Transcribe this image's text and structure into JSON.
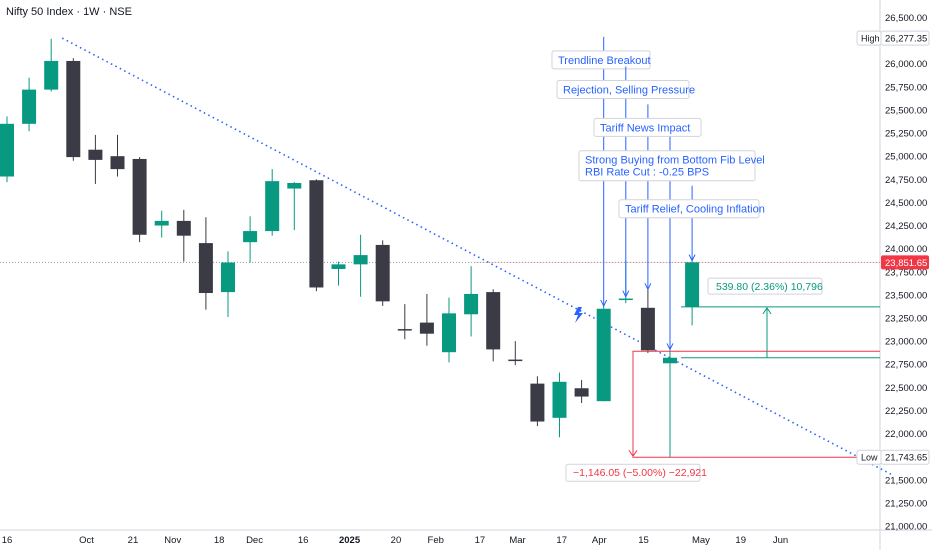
{
  "header": {
    "symbol": "Nifty 50 Index",
    "interval": "1W",
    "exchange": "NSE"
  },
  "chart_data": {
    "type": "candlestick",
    "title": "Nifty 50 Index · 1W · NSE",
    "y_axis": {
      "range": [
        21000,
        26700
      ],
      "ticks": [
        "26,500.00",
        "26,250.00",
        "26,000.00",
        "25,750.00",
        "25,500.00",
        "25,250.00",
        "25,000.00",
        "24,750.00",
        "24,500.00",
        "24,250.00",
        "24,000.00",
        "23,750.00",
        "23,500.00",
        "23,250.00",
        "23,000.00",
        "22,750.00",
        "22,500.00",
        "22,250.00",
        "22,000.00",
        "21,750.00",
        "21,500.00",
        "21,250.00",
        "21,000.00"
      ],
      "tick_values": [
        26500,
        26250,
        26000,
        25750,
        25500,
        25250,
        25000,
        24750,
        24500,
        24250,
        24000,
        23750,
        23500,
        23250,
        23000,
        22750,
        22500,
        22250,
        22000,
        21750,
        21500,
        21250,
        21000
      ]
    },
    "x_axis": {
      "labels": [
        {
          "label": "16",
          "week": 0
        },
        {
          "label": "Oct",
          "week": 3.6
        },
        {
          "label": "21",
          "week": 5.7
        },
        {
          "label": "Nov",
          "week": 7.5
        },
        {
          "label": "18",
          "week": 9.6
        },
        {
          "label": "Dec",
          "week": 11.2
        },
        {
          "label": "16",
          "week": 13.4
        },
        {
          "label": "2025",
          "week": 15.5
        },
        {
          "label": "20",
          "week": 17.6
        },
        {
          "label": "Feb",
          "week": 19.4
        },
        {
          "label": "17",
          "week": 21.4
        },
        {
          "label": "Mar",
          "week": 23.1
        },
        {
          "label": "17",
          "week": 25.1
        },
        {
          "label": "Apr",
          "week": 26.8
        },
        {
          "label": "15",
          "week": 28.8
        },
        {
          "label": "May",
          "week": 31.4
        },
        {
          "label": "19",
          "week": 33.2
        },
        {
          "label": "Jun",
          "week": 35.0
        }
      ]
    },
    "candles": [
      {
        "o": 24780,
        "h": 25430,
        "l": 24720,
        "c": 25350
      },
      {
        "o": 25350,
        "h": 25850,
        "l": 25270,
        "c": 25720
      },
      {
        "o": 25720,
        "h": 26270,
        "l": 25700,
        "c": 26030
      },
      {
        "o": 26030,
        "h": 26060,
        "l": 24950,
        "c": 24990
      },
      {
        "o": 25070,
        "h": 25230,
        "l": 24700,
        "c": 24960
      },
      {
        "o": 25000,
        "h": 25230,
        "l": 24780,
        "c": 24860
      },
      {
        "o": 24970,
        "h": 24990,
        "l": 24070,
        "c": 24150
      },
      {
        "o": 24250,
        "h": 24410,
        "l": 24120,
        "c": 24300
      },
      {
        "o": 24300,
        "h": 24420,
        "l": 23860,
        "c": 24140
      },
      {
        "o": 24060,
        "h": 24340,
        "l": 23340,
        "c": 23520
      },
      {
        "o": 23530,
        "h": 23970,
        "l": 23260,
        "c": 23850
      },
      {
        "o": 24070,
        "h": 24350,
        "l": 23850,
        "c": 24190
      },
      {
        "o": 24190,
        "h": 24860,
        "l": 24140,
        "c": 24730
      },
      {
        "o": 24650,
        "h": 24720,
        "l": 24200,
        "c": 24710
      },
      {
        "o": 24740,
        "h": 24750,
        "l": 23540,
        "c": 23580
      },
      {
        "o": 23780,
        "h": 23860,
        "l": 23600,
        "c": 23830
      },
      {
        "o": 23830,
        "h": 24150,
        "l": 23480,
        "c": 23930
      },
      {
        "o": 24040,
        "h": 24090,
        "l": 23380,
        "c": 23430
      },
      {
        "o": 23130,
        "h": 23400,
        "l": 23020,
        "c": 23120
      },
      {
        "o": 23200,
        "h": 23510,
        "l": 22950,
        "c": 23080
      },
      {
        "o": 22880,
        "h": 23470,
        "l": 22770,
        "c": 23300
      },
      {
        "o": 23290,
        "h": 23810,
        "l": 23050,
        "c": 23510
      },
      {
        "o": 23530,
        "h": 23560,
        "l": 22780,
        "c": 22910
      },
      {
        "o": 22800,
        "h": 23000,
        "l": 22740,
        "c": 22790
      },
      {
        "o": 22540,
        "h": 22620,
        "l": 22080,
        "c": 22130
      },
      {
        "o": 22170,
        "h": 22660,
        "l": 21960,
        "c": 22560
      },
      {
        "o": 22490,
        "h": 22580,
        "l": 22330,
        "c": 22400
      },
      {
        "o": 22350,
        "h": 23400,
        "l": 22350,
        "c": 23350
      },
      {
        "o": 23450,
        "h": 23870,
        "l": 23410,
        "c": 23460
      },
      {
        "o": 23360,
        "h": 23560,
        "l": 22870,
        "c": 22900
      },
      {
        "o": 22760,
        "h": 22950,
        "l": 21743.65,
        "c": 22820
      },
      {
        "o": 23370,
        "h": 23870,
        "l": 23170,
        "c": 23851.65
      }
    ],
    "price_markers": [
      {
        "label": "High",
        "value": "26,277.35",
        "y": 26277.35
      },
      {
        "label": "",
        "value": "23,851.65",
        "y": 23851.65
      },
      {
        "label": "Low",
        "value": "21,743.65",
        "y": 21743.65
      }
    ],
    "trendline": {
      "from": {
        "week": 2.5,
        "y": 26277
      },
      "to": {
        "week": 40,
        "y": 21560
      }
    },
    "annotations": [
      {
        "text": "Trendline Breakout",
        "week": 27.3,
        "y_text": 26020,
        "target_week": 27.0,
        "target_y": 23380
      },
      {
        "text": "Rejection, Selling Pressure",
        "week": 28.2,
        "y_text": 25700,
        "target_week": 28.0,
        "target_y": 23480
      },
      {
        "text": "Tariff News Impact",
        "week": 29.2,
        "y_text": 25290,
        "target_week": 29.0,
        "target_y": 23560
      },
      {
        "text": "Strong Buying from Bottom Fib Level",
        "text2": "RBI Rate Cut : -0.25 BPS",
        "week": 30.6,
        "y_text": 24940,
        "target_week": 30.0,
        "target_y": 22910
      },
      {
        "text": "Tariff Relief, Cooling Inflation",
        "week": 31.3,
        "y_text": 24410,
        "target_week": 31.0,
        "target_y": 23870
      }
    ],
    "measurements": [
      {
        "text": "539.80 (2.36%) 10,796",
        "color": "#089981"
      },
      {
        "text": "−1,146.05 (−5.00%) −22,921",
        "color": "#f23645"
      }
    ],
    "colors": {
      "up": "#089981",
      "down": "#3a3b45",
      "annotation": "#2962ff",
      "trend": "#2962ff",
      "drawdown": "#f23645"
    }
  }
}
